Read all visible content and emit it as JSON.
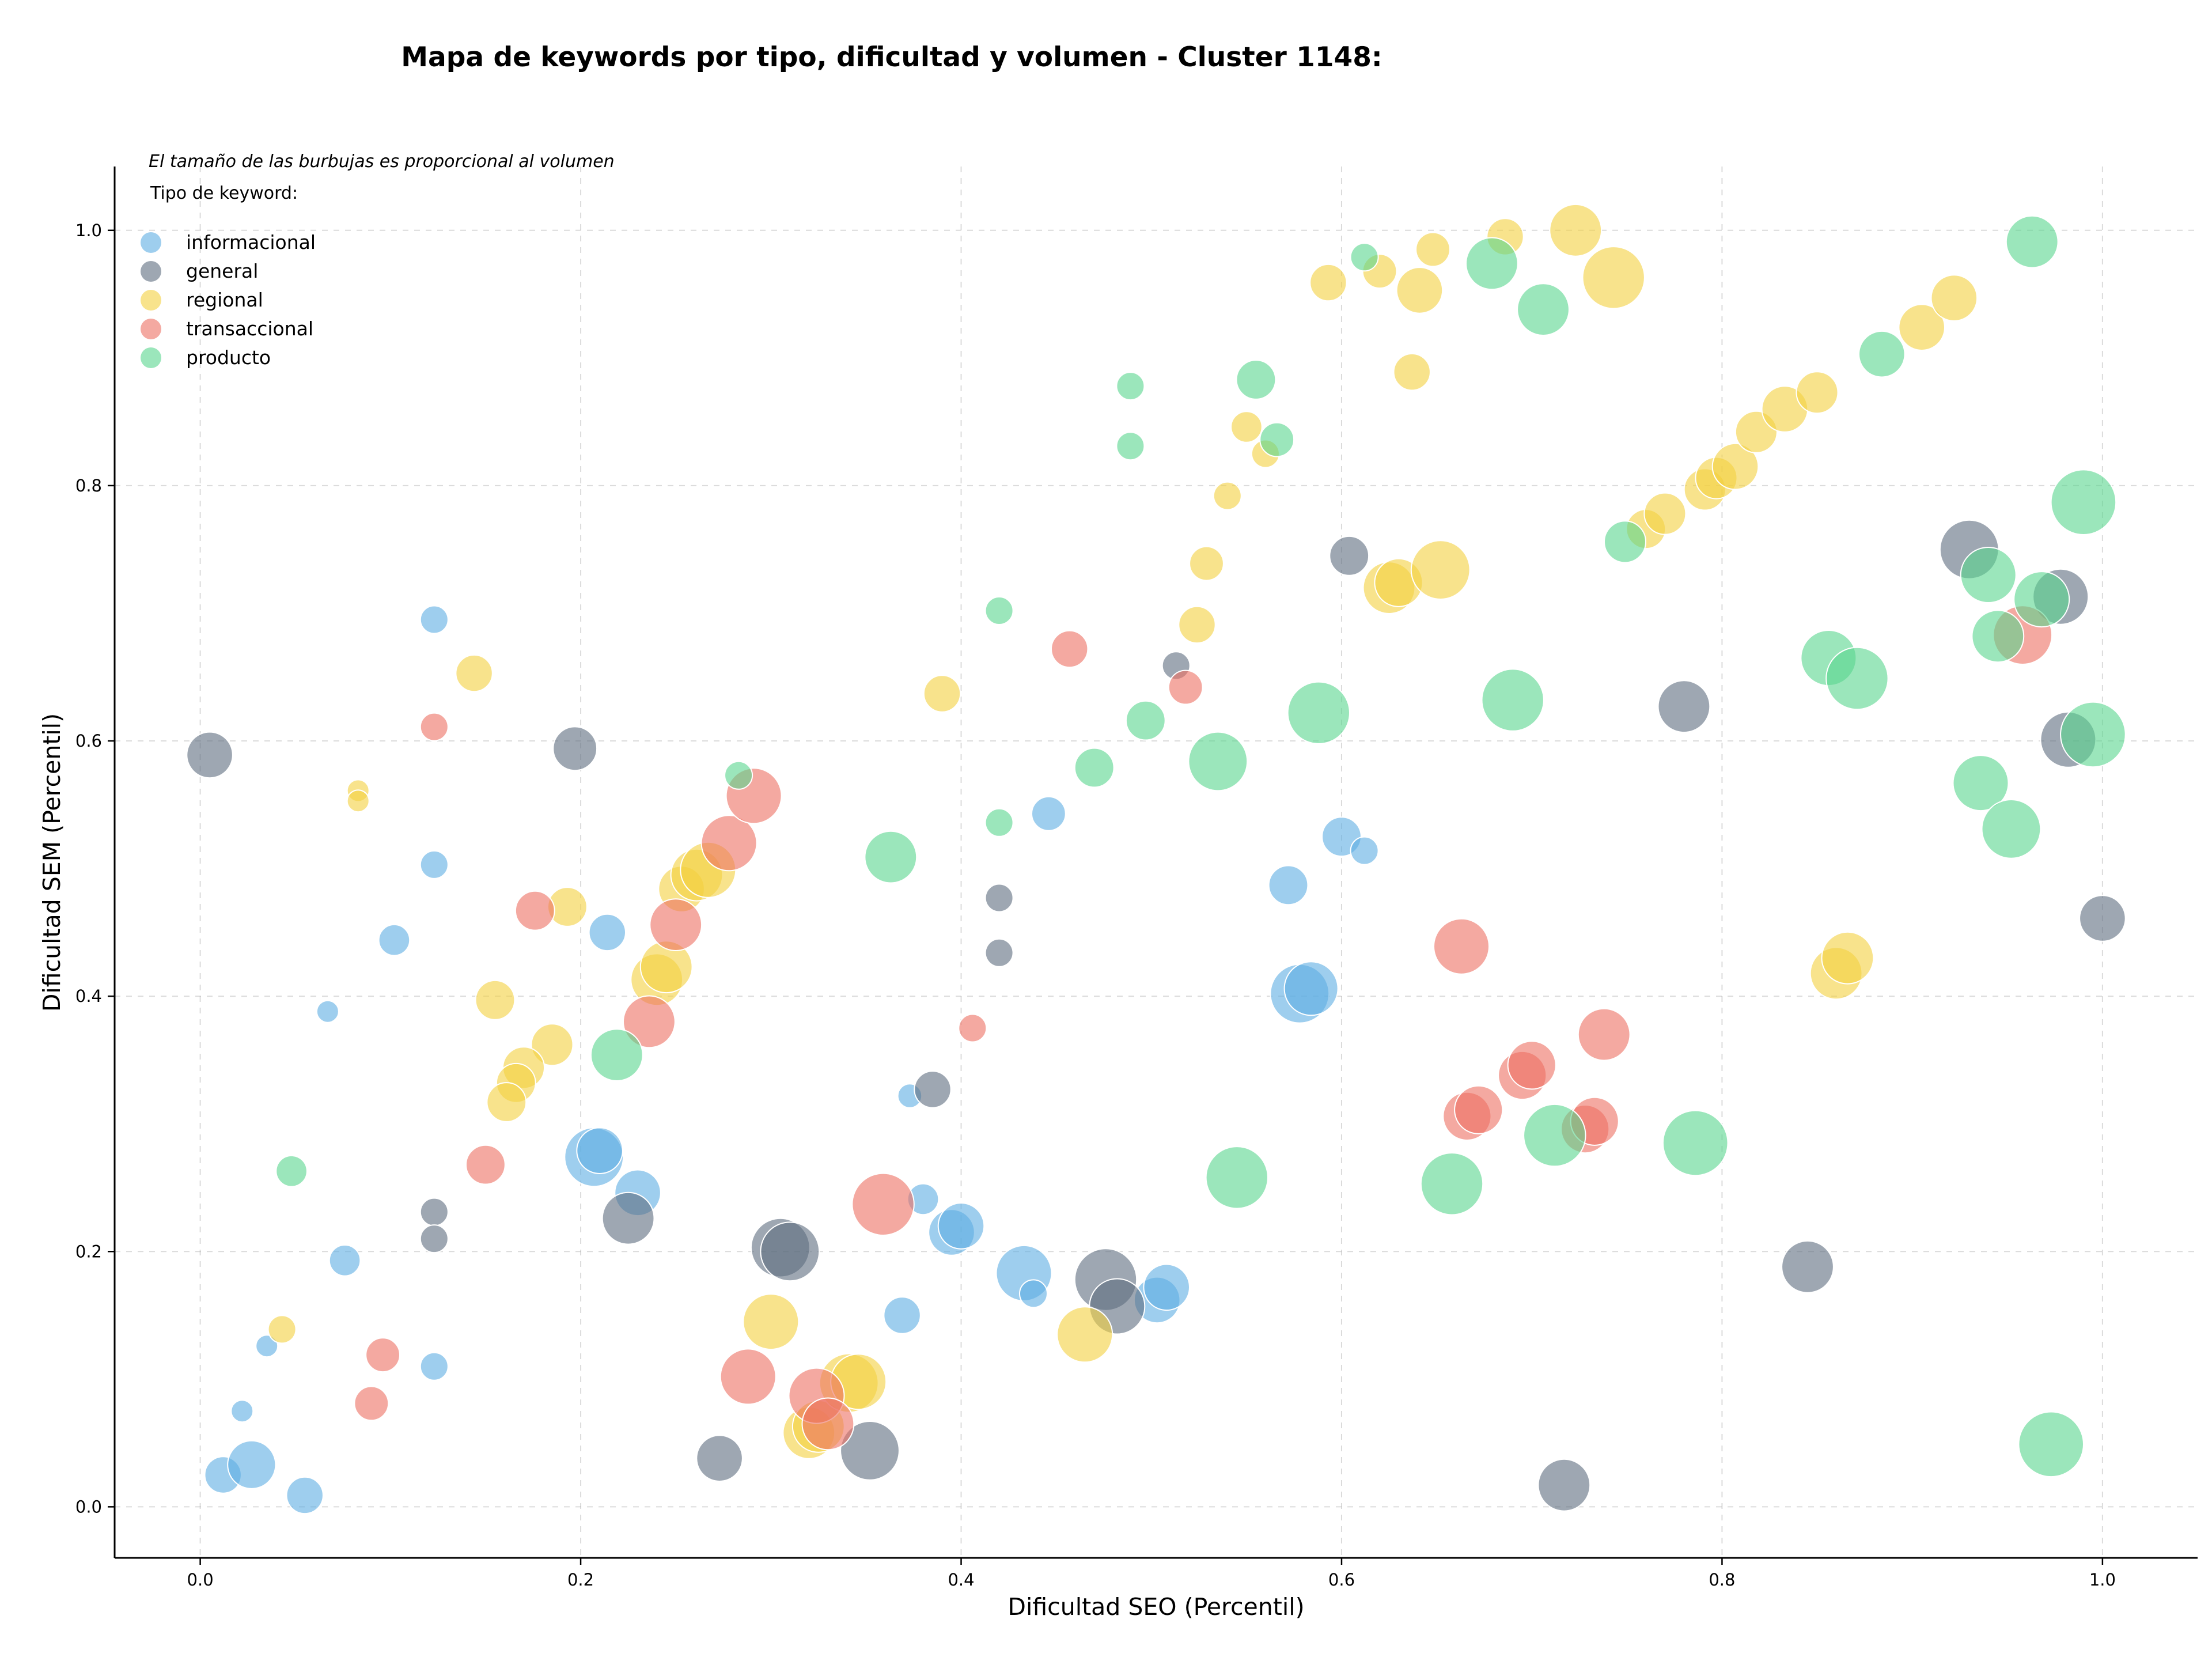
{
  "chart_data": {
    "type": "scatter",
    "title": "Mapa de keywords por tipo, dificultad y volumen - Cluster 1148:",
    "xlabel": "Dificultad SEO (Percentil)",
    "ylabel": "Dificultad SEM (Percentil)",
    "note": "El tamaño de las burbujas es proporcional al volumen",
    "legend_title": "Tipo de keyword:",
    "legend_position": "top-left",
    "grid": true,
    "xlim": [
      -0.045,
      1.05
    ],
    "ylim": [
      -0.04,
      1.05
    ],
    "x_ticks": [
      "0.0",
      "0.2",
      "0.4",
      "0.6",
      "0.8",
      "1.0"
    ],
    "y_ticks": [
      "0.0",
      "0.2",
      "0.4",
      "0.6",
      "0.8",
      "1.0"
    ],
    "size_unit": "relative volume",
    "series": [
      {
        "name": "informacional",
        "color": "#5DADE2",
        "points": [
          [
            0.123,
            0.695,
            4
          ],
          [
            0.123,
            0.503,
            4
          ],
          [
            0.102,
            0.444,
            5
          ],
          [
            0.067,
            0.388,
            2.5
          ],
          [
            0.214,
            0.45,
            7
          ],
          [
            0.076,
            0.193,
            5
          ],
          [
            0.035,
            0.126,
            2.5
          ],
          [
            0.022,
            0.075,
            2.5
          ],
          [
            0.012,
            0.025,
            7
          ],
          [
            0.027,
            0.033,
            12
          ],
          [
            0.055,
            0.009,
            7
          ],
          [
            0.123,
            0.11,
            4
          ],
          [
            0.207,
            0.274,
            18
          ],
          [
            0.21,
            0.279,
            11
          ],
          [
            0.23,
            0.246,
            11
          ],
          [
            0.373,
            0.322,
            3
          ],
          [
            0.38,
            0.241,
            5
          ],
          [
            0.369,
            0.15,
            7
          ],
          [
            0.395,
            0.215,
            11
          ],
          [
            0.4,
            0.22,
            11
          ],
          [
            0.433,
            0.183,
            16
          ],
          [
            0.438,
            0.167,
            4
          ],
          [
            0.446,
            0.543,
            6
          ],
          [
            0.503,
            0.162,
            11
          ],
          [
            0.508,
            0.172,
            11
          ],
          [
            0.572,
            0.487,
            8
          ],
          [
            0.578,
            0.402,
            18
          ],
          [
            0.584,
            0.406,
            15
          ],
          [
            0.6,
            0.525,
            8
          ],
          [
            0.612,
            0.514,
            4
          ]
        ]
      },
      {
        "name": "general",
        "color": "#5D6D7E",
        "points": [
          [
            0.005,
            0.589,
            11
          ],
          [
            0.197,
            0.594,
            10
          ],
          [
            0.123,
            0.231,
            4
          ],
          [
            0.123,
            0.21,
            4
          ],
          [
            0.225,
            0.226,
            14
          ],
          [
            0.273,
            0.038,
            11
          ],
          [
            0.305,
            0.203,
            18
          ],
          [
            0.31,
            0.2,
            18
          ],
          [
            0.352,
            0.044,
            18
          ],
          [
            0.385,
            0.327,
            7
          ],
          [
            0.42,
            0.477,
            4
          ],
          [
            0.42,
            0.434,
            4
          ],
          [
            0.476,
            0.178,
            20
          ],
          [
            0.482,
            0.157,
            16
          ],
          [
            0.513,
            0.659,
            4
          ],
          [
            0.604,
            0.745,
            8
          ],
          [
            0.717,
            0.017,
            14
          ],
          [
            0.78,
            0.627,
            14
          ],
          [
            0.845,
            0.188,
            14
          ],
          [
            0.93,
            0.75,
            18
          ],
          [
            0.978,
            0.713,
            16
          ],
          [
            0.982,
            0.601,
            16
          ],
          [
            1.0,
            0.461,
            11
          ]
        ]
      },
      {
        "name": "regional",
        "color": "#F4D03F",
        "points": [
          [
            0.144,
            0.653,
            7
          ],
          [
            0.083,
            0.561,
            2.5
          ],
          [
            0.083,
            0.553,
            2.5
          ],
          [
            0.155,
            0.397,
            8
          ],
          [
            0.193,
            0.47,
            8
          ],
          [
            0.185,
            0.362,
            9
          ],
          [
            0.17,
            0.344,
            9
          ],
          [
            0.166,
            0.332,
            8
          ],
          [
            0.161,
            0.317,
            8
          ],
          [
            0.043,
            0.139,
            4
          ],
          [
            0.24,
            0.413,
            14
          ],
          [
            0.245,
            0.423,
            14
          ],
          [
            0.253,
            0.484,
            11
          ],
          [
            0.261,
            0.495,
            14
          ],
          [
            0.267,
            0.499,
            16
          ],
          [
            0.3,
            0.145,
            16
          ],
          [
            0.32,
            0.058,
            14
          ],
          [
            0.325,
            0.063,
            14
          ],
          [
            0.341,
            0.097,
            18
          ],
          [
            0.346,
            0.098,
            16
          ],
          [
            0.39,
            0.637,
            7
          ],
          [
            0.465,
            0.135,
            16
          ],
          [
            0.524,
            0.691,
            7
          ],
          [
            0.529,
            0.739,
            6
          ],
          [
            0.54,
            0.792,
            4
          ],
          [
            0.55,
            0.846,
            5
          ],
          [
            0.56,
            0.825,
            4
          ],
          [
            0.593,
            0.959,
            7
          ],
          [
            0.62,
            0.968,
            6
          ],
          [
            0.625,
            0.72,
            14
          ],
          [
            0.63,
            0.724,
            12
          ],
          [
            0.637,
            0.889,
            7
          ],
          [
            0.641,
            0.953,
            11
          ],
          [
            0.648,
            0.985,
            6
          ],
          [
            0.652,
            0.734,
            18
          ],
          [
            0.686,
            0.995,
            7
          ],
          [
            0.723,
            1.0,
            14
          ],
          [
            0.743,
            0.963,
            20
          ],
          [
            0.76,
            0.766,
            8
          ],
          [
            0.77,
            0.778,
            9
          ],
          [
            0.791,
            0.797,
            9
          ],
          [
            0.797,
            0.806,
            9
          ],
          [
            0.807,
            0.815,
            11
          ],
          [
            0.818,
            0.842,
            9
          ],
          [
            0.833,
            0.86,
            11
          ],
          [
            0.85,
            0.873,
            9
          ],
          [
            0.86,
            0.418,
            14
          ],
          [
            0.866,
            0.43,
            14
          ],
          [
            0.905,
            0.924,
            11
          ],
          [
            0.922,
            0.947,
            11
          ]
        ]
      },
      {
        "name": "transaccional",
        "color": "#EC7063",
        "points": [
          [
            0.123,
            0.611,
            4
          ],
          [
            0.176,
            0.467,
            8
          ],
          [
            0.15,
            0.268,
            8
          ],
          [
            0.096,
            0.119,
            6
          ],
          [
            0.09,
            0.081,
            6
          ],
          [
            0.236,
            0.38,
            14
          ],
          [
            0.25,
            0.456,
            14
          ],
          [
            0.278,
            0.52,
            16
          ],
          [
            0.291,
            0.557,
            16
          ],
          [
            0.288,
            0.102,
            16
          ],
          [
            0.324,
            0.087,
            16
          ],
          [
            0.33,
            0.065,
            14
          ],
          [
            0.359,
            0.237,
            20
          ],
          [
            0.406,
            0.375,
            4
          ],
          [
            0.457,
            0.672,
            7
          ],
          [
            0.518,
            0.642,
            6
          ],
          [
            0.663,
            0.439,
            16
          ],
          [
            0.666,
            0.306,
            12
          ],
          [
            0.672,
            0.311,
            12
          ],
          [
            0.695,
            0.338,
            12
          ],
          [
            0.7,
            0.346,
            12
          ],
          [
            0.728,
            0.296,
            12
          ],
          [
            0.733,
            0.302,
            12
          ],
          [
            0.738,
            0.37,
            14
          ],
          [
            0.958,
            0.683,
            18
          ]
        ]
      },
      {
        "name": "producto",
        "color": "#58D68D",
        "points": [
          [
            0.048,
            0.263,
            5
          ],
          [
            0.219,
            0.354,
            14
          ],
          [
            0.283,
            0.573,
            4
          ],
          [
            0.363,
            0.509,
            14
          ],
          [
            0.42,
            0.702,
            4
          ],
          [
            0.42,
            0.536,
            4
          ],
          [
            0.47,
            0.579,
            8
          ],
          [
            0.489,
            0.878,
            4
          ],
          [
            0.489,
            0.831,
            4
          ],
          [
            0.497,
            0.616,
            8
          ],
          [
            0.535,
            0.584,
            18
          ],
          [
            0.545,
            0.258,
            20
          ],
          [
            0.555,
            0.883,
            8
          ],
          [
            0.566,
            0.836,
            6
          ],
          [
            0.588,
            0.622,
            20
          ],
          [
            0.612,
            0.979,
            4
          ],
          [
            0.658,
            0.253,
            20
          ],
          [
            0.679,
            0.974,
            14
          ],
          [
            0.69,
            0.632,
            20
          ],
          [
            0.706,
            0.938,
            14
          ],
          [
            0.712,
            0.291,
            20
          ],
          [
            0.749,
            0.756,
            9
          ],
          [
            0.786,
            0.285,
            22
          ],
          [
            0.856,
            0.665,
            16
          ],
          [
            0.871,
            0.649,
            20
          ],
          [
            0.884,
            0.903,
            11
          ],
          [
            0.936,
            0.567,
            16
          ],
          [
            0.94,
            0.73,
            16
          ],
          [
            0.945,
            0.682,
            14
          ],
          [
            0.952,
            0.531,
            18
          ],
          [
            0.963,
            0.991,
            14
          ],
          [
            0.968,
            0.711,
            16
          ],
          [
            0.973,
            0.049,
            22
          ],
          [
            0.99,
            0.787,
            22
          ],
          [
            0.995,
            0.605,
            22
          ]
        ]
      }
    ]
  }
}
